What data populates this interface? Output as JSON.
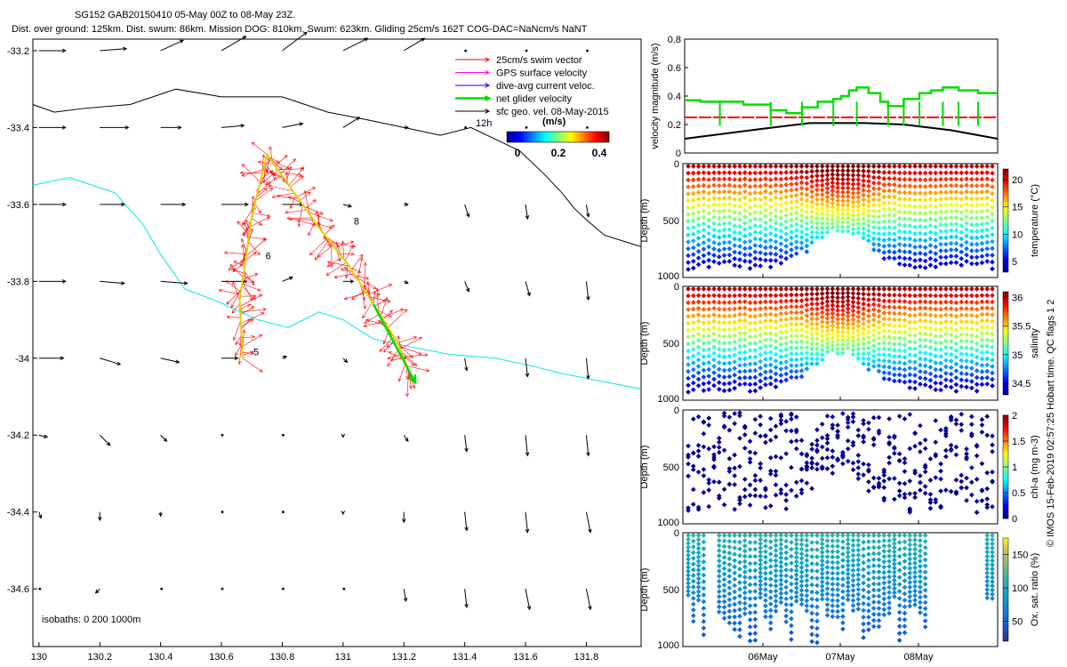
{
  "header": {
    "title_line1": "SG152 GAB20150410 05-May 00Z to 08-May 23Z.",
    "title_line2": "Dist. over ground: 125km. Dist. swum: 86km. Mission DOG: 810km. Swum: 623km. Gliding 25cm/s 162T COG-DAC=NaNcm/s NaNT"
  },
  "credit": "© IMOS 15-Feb-2019 02:57:25 Hobart time. QC flags 1  2",
  "colors": {
    "swim": "#ff0000",
    "gps": "#ff00ff",
    "dac": "#0000ff",
    "net": "#00dd00",
    "geo": "#000000",
    "isobath": "#00e5ee"
  },
  "chart_data": [
    {
      "type": "map",
      "xlim": [
        129.98,
        131.98
      ],
      "ylim": [
        -34.75,
        -33.17
      ],
      "x_ticks": [
        "130",
        "130.2",
        "130.4",
        "130.6",
        "130.8",
        "131",
        "131.2",
        "131.4",
        "131.6",
        "131.8"
      ],
      "y_ticks": [
        "-33.2",
        "-33.4",
        "-33.6",
        "-33.8",
        "-34",
        "-34.2",
        "-34.4",
        "-34.6"
      ],
      "legend": [
        {
          "label": "25cm/s swim vector",
          "color": "#ff0000"
        },
        {
          "label": "GPS surface velocity",
          "color": "#ff00ff"
        },
        {
          "label": "dive-avg current veloc.",
          "color": "#0000ff"
        },
        {
          "label": "net glider velocity",
          "color": "#00dd00"
        },
        {
          "label": "sfc geo. vel. 08-May-2015",
          "color": "#000000"
        }
      ],
      "scale_label": "12h",
      "colorbar": {
        "label": "(m/s)",
        "ticks": [
          "0",
          "0.2",
          "0.4"
        ],
        "range": [
          0,
          0.5
        ]
      },
      "isobaths_note": "isobaths: 0   200   1000m",
      "day_labels": [
        {
          "text": "5",
          "lon": 130.67,
          "lat": -33.99
        },
        {
          "text": "6",
          "lon": 130.71,
          "lat": -33.74
        },
        {
          "text": "8",
          "lon": 131.0,
          "lat": -33.65
        }
      ],
      "glider_track": [
        [
          130.67,
          -34.0
        ],
        [
          130.66,
          -33.85
        ],
        [
          130.68,
          -33.74
        ],
        [
          130.7,
          -33.63
        ],
        [
          130.75,
          -33.47
        ],
        [
          130.84,
          -33.57
        ],
        [
          130.93,
          -33.67
        ],
        [
          131.02,
          -33.76
        ],
        [
          131.1,
          -33.86
        ],
        [
          131.18,
          -33.96
        ],
        [
          131.22,
          -34.04
        ]
      ],
      "isobath_1000m": [
        [
          129.98,
          -33.55
        ],
        [
          130.1,
          -33.53
        ],
        [
          130.25,
          -33.57
        ],
        [
          130.34,
          -33.65
        ],
        [
          130.4,
          -33.73
        ],
        [
          130.48,
          -33.82
        ],
        [
          130.58,
          -33.85
        ],
        [
          130.72,
          -33.9
        ],
        [
          130.82,
          -33.92
        ],
        [
          130.92,
          -33.88
        ],
        [
          131.0,
          -33.9
        ],
        [
          131.1,
          -33.95
        ],
        [
          131.22,
          -33.97
        ],
        [
          131.35,
          -33.99
        ],
        [
          131.5,
          -34.0
        ],
        [
          131.62,
          -34.02
        ],
        [
          131.72,
          -34.04
        ],
        [
          131.85,
          -34.06
        ],
        [
          131.98,
          -34.08
        ]
      ],
      "isobath_200m": [
        [
          129.98,
          -33.34
        ],
        [
          130.05,
          -33.36
        ],
        [
          130.15,
          -33.35
        ],
        [
          130.3,
          -33.34
        ],
        [
          130.45,
          -33.3
        ],
        [
          130.6,
          -33.32
        ],
        [
          130.8,
          -33.32
        ],
        [
          130.95,
          -33.36
        ],
        [
          131.08,
          -33.38
        ],
        [
          131.2,
          -33.4
        ],
        [
          131.32,
          -33.42
        ],
        [
          131.42,
          -33.4
        ],
        [
          131.5,
          -33.43
        ],
        [
          131.58,
          -33.46
        ],
        [
          131.66,
          -33.52
        ],
        [
          131.72,
          -33.57
        ],
        [
          131.76,
          -33.61
        ],
        [
          131.8,
          -33.64
        ],
        [
          131.86,
          -33.68
        ],
        [
          131.94,
          -33.7
        ],
        [
          131.98,
          -33.71
        ]
      ],
      "geo_vectors": [
        {
          "lat": -33.2,
          "u": [
            0.13,
            0.13,
            0.11,
            0.12,
            0.12,
            0.12,
            0.1,
            0.0,
            0.0,
            0.0
          ],
          "v": [
            0.0,
            0.01,
            0.05,
            0.07,
            0.09,
            0.06,
            0.06,
            0.0,
            0.0,
            0.0
          ]
        },
        {
          "lat": -33.4,
          "u": [
            0.13,
            0.14,
            0.1,
            0.11,
            0.1,
            0.08,
            0.02,
            0.0,
            0.0,
            0.0
          ],
          "v": [
            0.0,
            0.0,
            0.0,
            0.01,
            0.02,
            0.05,
            0.0,
            0.0,
            0.0,
            0.0
          ]
        },
        {
          "lat": -33.6,
          "u": [
            0.13,
            0.12,
            0.12,
            0.13,
            0.1,
            0.04,
            0.02,
            0.02,
            0.01,
            0.01
          ],
          "v": [
            0.0,
            0.0,
            0.0,
            0.0,
            0.0,
            -0.01,
            0.0,
            -0.06,
            -0.07,
            -0.06
          ]
        },
        {
          "lat": -33.8,
          "u": [
            0.13,
            0.12,
            0.13,
            0.12,
            0.05,
            0.05,
            0.02,
            0.02,
            0.02,
            0.01
          ],
          "v": [
            0.0,
            -0.01,
            -0.01,
            0.0,
            0.02,
            0.0,
            -0.01,
            -0.05,
            -0.07,
            -0.09
          ]
        },
        {
          "lat": -34.0,
          "u": [
            0.12,
            0.1,
            0.09,
            0.08,
            0.02,
            0.02,
            0.0,
            0.01,
            0.01,
            0.01
          ],
          "v": [
            0.0,
            -0.03,
            -0.02,
            0.0,
            0.01,
            -0.02,
            0.0,
            -0.06,
            -0.09,
            -0.1
          ]
        },
        {
          "lat": -34.2,
          "u": [
            0.04,
            0.05,
            0.03,
            0.0,
            0.0,
            0.0,
            0.02,
            0.01,
            0.01,
            0.01
          ],
          "v": [
            -0.01,
            -0.05,
            -0.03,
            0.0,
            0.0,
            -0.01,
            -0.03,
            -0.08,
            -0.1,
            -0.1
          ]
        },
        {
          "lat": -34.4,
          "u": [
            0.01,
            0.0,
            0.0,
            0.0,
            0.0,
            0.0,
            0.0,
            0.01,
            0.01,
            0.02
          ],
          "v": [
            -0.03,
            -0.04,
            -0.02,
            0.0,
            0.0,
            -0.01,
            -0.05,
            -0.09,
            -0.1,
            -0.1
          ]
        },
        {
          "lat": -34.6,
          "u": [
            0.0,
            -0.02,
            0.0,
            0.0,
            0.0,
            0.0,
            0.01,
            0.01,
            0.02,
            0.02
          ],
          "v": [
            0.0,
            -0.02,
            0.0,
            0.0,
            0.0,
            0.0,
            -0.06,
            -0.09,
            -0.1,
            -0.1
          ]
        }
      ]
    },
    {
      "type": "line",
      "ylabel": "velocity magnitude (m/s)",
      "ylim": [
        0,
        0.8
      ],
      "y_ticks": [
        "0",
        "0.2",
        "0.4",
        "0.6",
        "0.8"
      ],
      "x_range_days": [
        0,
        4
      ],
      "series": [
        {
          "name": "net glider velocity",
          "color": "#00dd00",
          "x": [
            0.0,
            0.2,
            0.2,
            0.45,
            0.45,
            0.75,
            0.75,
            1.1,
            1.1,
            1.3,
            1.3,
            1.5,
            1.5,
            1.7,
            1.7,
            1.9,
            1.9,
            2.0,
            2.0,
            2.1,
            2.1,
            2.2,
            2.2,
            2.35,
            2.35,
            2.5,
            2.5,
            2.6,
            2.6,
            2.8,
            2.8,
            3.0,
            3.0,
            3.15,
            3.15,
            3.3,
            3.3,
            3.5,
            3.5,
            3.75,
            3.75,
            4.0
          ],
          "y": [
            0.37,
            0.37,
            0.36,
            0.36,
            0.36,
            0.36,
            0.34,
            0.34,
            0.3,
            0.3,
            0.28,
            0.28,
            0.32,
            0.32,
            0.36,
            0.36,
            0.38,
            0.38,
            0.4,
            0.4,
            0.44,
            0.44,
            0.46,
            0.46,
            0.42,
            0.42,
            0.36,
            0.36,
            0.33,
            0.33,
            0.38,
            0.38,
            0.42,
            0.42,
            0.44,
            0.44,
            0.46,
            0.46,
            0.44,
            0.44,
            0.42,
            0.42
          ]
        },
        {
          "name": "25cm/s swim",
          "color": "#ff0000",
          "x": [
            0,
            4
          ],
          "y": [
            0.25,
            0.25
          ]
        },
        {
          "name": "geostrophic",
          "color": "#000000",
          "x": [
            0,
            1.0,
            1.6,
            2.3,
            2.8,
            3.4,
            4.0
          ],
          "y": [
            0.1,
            0.17,
            0.21,
            0.21,
            0.2,
            0.16,
            0.1
          ]
        }
      ]
    },
    {
      "type": "scatter",
      "variable": "temperature",
      "ylabel": "Depth (m)",
      "ylim": [
        1000,
        0
      ],
      "y_ticks": [
        "0",
        "500",
        "1000"
      ],
      "colorbar_label": "temperature (°C)",
      "colorbar_ticks": [
        "5",
        "10",
        "15",
        "20"
      ],
      "crange": [
        3,
        22
      ],
      "x_ticks": [
        "06May",
        "07May",
        "08May"
      ],
      "profiles": 60,
      "max_depth_m": 1000
    },
    {
      "type": "scatter",
      "variable": "salinity",
      "ylabel": "Depth (m)",
      "ylim": [
        1000,
        0
      ],
      "y_ticks": [
        "0",
        "500",
        "1000"
      ],
      "colorbar_label": "salinity",
      "colorbar_ticks": [
        "34.5",
        "35",
        "35.5",
        "36"
      ],
      "crange": [
        34.3,
        36.1
      ],
      "x_ticks": [
        "06May",
        "07May",
        "08May"
      ],
      "profiles": 60,
      "max_depth_m": 1000
    },
    {
      "type": "scatter",
      "variable": "chl-a",
      "ylabel": "Depth (m)",
      "ylim": [
        1000,
        0
      ],
      "y_ticks": [
        "0",
        "500",
        "1000"
      ],
      "colorbar_label": "chl-a (mg m-3)",
      "colorbar_ticks": [
        "0",
        "0.5",
        "1",
        "1.5",
        "2"
      ],
      "crange": [
        0,
        2
      ],
      "x_ticks": [
        "06May",
        "07May",
        "08May"
      ],
      "profiles": 60,
      "max_depth_m": 1000
    },
    {
      "type": "scatter",
      "variable": "oxygen",
      "ylabel": "Depth (m)",
      "ylim": [
        1000,
        0
      ],
      "y_ticks": [
        "0",
        "500",
        "1000"
      ],
      "colorbar_label": "Ox. sat. ratio (%)",
      "colorbar_ticks": [
        "50",
        "100",
        "150"
      ],
      "crange": [
        20,
        175
      ],
      "x_ticks": [
        "06May",
        "07May",
        "08May"
      ],
      "profiles": 60,
      "max_depth_m": 1000
    }
  ]
}
